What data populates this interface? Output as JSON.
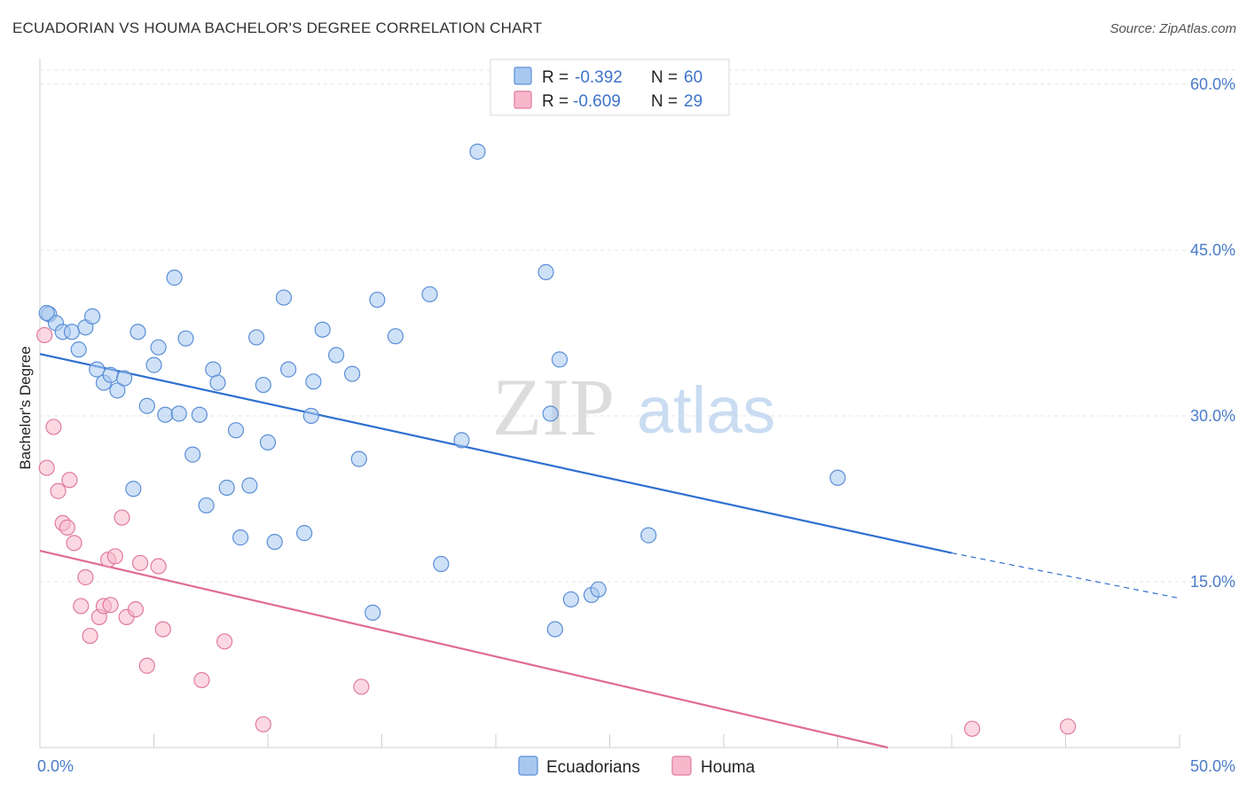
{
  "title": "ECUADORIAN VS HOUMA BACHELOR'S DEGREE CORRELATION CHART",
  "source": "Source: ZipAtlas.com",
  "watermark": {
    "zip": "ZIP",
    "atlas": "atlas"
  },
  "legend_top": [
    {
      "r_label": "R =",
      "r_value": "-0.392",
      "n_label": "N =",
      "n_value": "60",
      "color": "#a8c8f0",
      "stroke": "#5b8fd6"
    },
    {
      "r_label": "R =",
      "r_value": "-0.609",
      "n_label": "N =",
      "n_value": "29",
      "color": "#f7b8cb",
      "stroke": "#e07aa0"
    }
  ],
  "legend_bottom": [
    {
      "label": "Ecuadorians",
      "color": "#a8c8f0",
      "stroke": "#5b8fd6"
    },
    {
      "label": "Houma",
      "color": "#f7b8cb",
      "stroke": "#e07aa0"
    }
  ],
  "chart_data": {
    "type": "scatter",
    "xlabel": "",
    "ylabel": "Bachelor's Degree",
    "xlim": [
      0,
      50
    ],
    "ylim": [
      0,
      62
    ],
    "x_tick_labels": [
      "0.0%",
      "50.0%"
    ],
    "y_ticks": [
      15,
      30,
      45,
      60
    ],
    "y_tick_labels": [
      "15.0%",
      "30.0%",
      "45.0%",
      "60.0%"
    ],
    "grid": true,
    "series": [
      {
        "name": "Ecuadorians",
        "color": "#a8c8f0",
        "stroke": "#5b8fd6",
        "trend": {
          "x0": 0,
          "y0": 35.6,
          "x1": 40,
          "y1": 17.6,
          "dash_to_x": 50,
          "dash_to_y": 13.5,
          "color": "#2f6fd0"
        },
        "points": [
          [
            0.4,
            39.2
          ],
          [
            0.7,
            38.4
          ],
          [
            1.0,
            37.6
          ],
          [
            1.4,
            37.6
          ],
          [
            1.7,
            36.0
          ],
          [
            2.0,
            38.0
          ],
          [
            2.3,
            39.0
          ],
          [
            2.5,
            34.2
          ],
          [
            2.8,
            33.0
          ],
          [
            3.1,
            33.7
          ],
          [
            3.4,
            32.3
          ],
          [
            3.7,
            33.4
          ],
          [
            4.1,
            23.4
          ],
          [
            4.3,
            37.6
          ],
          [
            4.7,
            30.9
          ],
          [
            5.0,
            34.6
          ],
          [
            5.2,
            36.2
          ],
          [
            5.5,
            30.1
          ],
          [
            5.9,
            42.5
          ],
          [
            6.1,
            30.2
          ],
          [
            6.4,
            37.0
          ],
          [
            6.7,
            26.5
          ],
          [
            7.0,
            30.1
          ],
          [
            7.3,
            21.9
          ],
          [
            7.6,
            34.2
          ],
          [
            7.8,
            33.0
          ],
          [
            8.2,
            23.5
          ],
          [
            8.6,
            28.7
          ],
          [
            8.8,
            19.0
          ],
          [
            9.2,
            23.7
          ],
          [
            9.5,
            37.1
          ],
          [
            9.8,
            32.8
          ],
          [
            10.0,
            27.6
          ],
          [
            10.3,
            18.6
          ],
          [
            10.7,
            40.7
          ],
          [
            10.9,
            34.2
          ],
          [
            11.6,
            19.4
          ],
          [
            11.9,
            30.0
          ],
          [
            12.0,
            33.1
          ],
          [
            12.4,
            37.8
          ],
          [
            13.0,
            35.5
          ],
          [
            13.7,
            33.8
          ],
          [
            14.0,
            26.1
          ],
          [
            14.6,
            12.2
          ],
          [
            14.8,
            40.5
          ],
          [
            15.6,
            37.2
          ],
          [
            17.1,
            41.0
          ],
          [
            17.6,
            16.6
          ],
          [
            18.5,
            27.8
          ],
          [
            19.2,
            53.9
          ],
          [
            22.2,
            43.0
          ],
          [
            22.4,
            30.2
          ],
          [
            22.6,
            10.7
          ],
          [
            22.8,
            35.1
          ],
          [
            23.3,
            13.4
          ],
          [
            24.2,
            13.8
          ],
          [
            24.5,
            14.3
          ],
          [
            26.7,
            19.2
          ],
          [
            35.0,
            24.4
          ],
          [
            0.3,
            39.3
          ]
        ]
      },
      {
        "name": "Houma",
        "color": "#f7b8cb",
        "stroke": "#e07aa0",
        "trend": {
          "x0": 0,
          "y0": 17.8,
          "x1": 37.2,
          "y1": 0,
          "color": "#e06b94"
        },
        "points": [
          [
            0.2,
            37.3
          ],
          [
            0.3,
            25.3
          ],
          [
            0.6,
            29.0
          ],
          [
            0.8,
            23.2
          ],
          [
            1.0,
            20.3
          ],
          [
            1.2,
            19.9
          ],
          [
            1.3,
            24.2
          ],
          [
            1.5,
            18.5
          ],
          [
            1.8,
            12.8
          ],
          [
            2.0,
            15.4
          ],
          [
            2.2,
            10.1
          ],
          [
            2.6,
            11.8
          ],
          [
            2.8,
            12.8
          ],
          [
            3.0,
            17.0
          ],
          [
            3.1,
            12.9
          ],
          [
            3.3,
            17.3
          ],
          [
            3.6,
            20.8
          ],
          [
            3.8,
            11.8
          ],
          [
            4.2,
            12.5
          ],
          [
            4.4,
            16.7
          ],
          [
            4.7,
            7.4
          ],
          [
            5.2,
            16.4
          ],
          [
            5.4,
            10.7
          ],
          [
            7.1,
            6.1
          ],
          [
            8.1,
            9.6
          ],
          [
            9.8,
            2.1
          ],
          [
            14.1,
            5.5
          ],
          [
            40.9,
            1.7
          ],
          [
            45.1,
            1.9
          ]
        ]
      }
    ]
  }
}
